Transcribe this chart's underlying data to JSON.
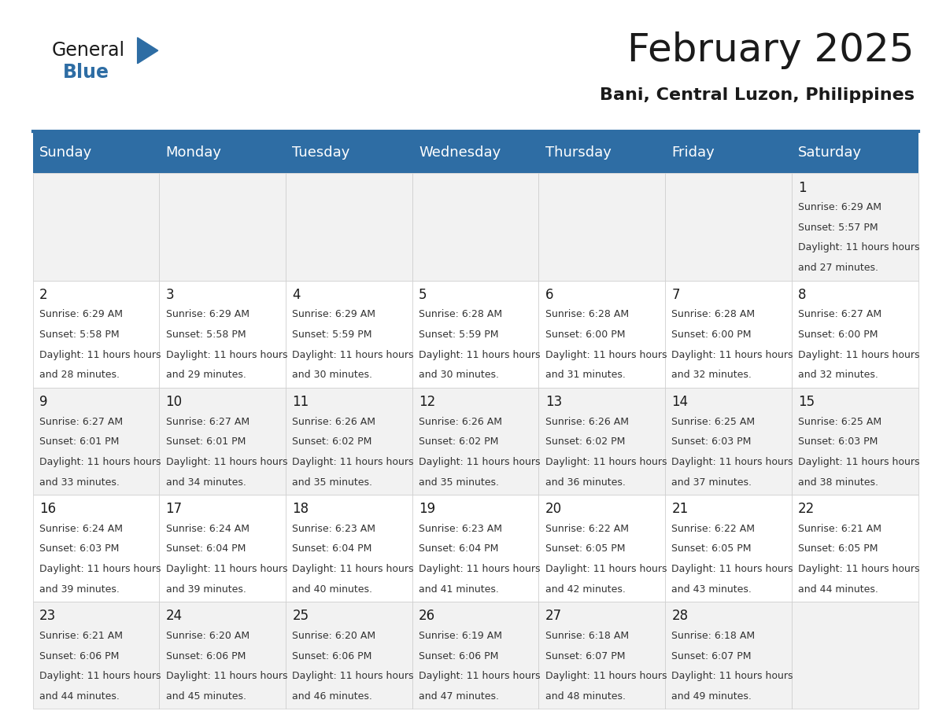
{
  "title": "February 2025",
  "subtitle": "Bani, Central Luzon, Philippines",
  "header_bg": "#2E6DA4",
  "header_text": "#FFFFFF",
  "cell_bg_even": "#F2F2F2",
  "cell_bg_odd": "#FFFFFF",
  "cell_border": "#CCCCCC",
  "day_headers": [
    "Sunday",
    "Monday",
    "Tuesday",
    "Wednesday",
    "Thursday",
    "Friday",
    "Saturday"
  ],
  "title_fontsize": 36,
  "subtitle_fontsize": 16,
  "header_fontsize": 13,
  "day_num_fontsize": 12,
  "info_fontsize": 9,
  "logo_general_color": "#1a1a1a",
  "logo_blue_color": "#2E6DA4",
  "calendar_data": {
    "1": {
      "sunrise": "6:29 AM",
      "sunset": "5:57 PM",
      "daylight": "11 hours and 27 minutes."
    },
    "2": {
      "sunrise": "6:29 AM",
      "sunset": "5:58 PM",
      "daylight": "11 hours and 28 minutes."
    },
    "3": {
      "sunrise": "6:29 AM",
      "sunset": "5:58 PM",
      "daylight": "11 hours and 29 minutes."
    },
    "4": {
      "sunrise": "6:29 AM",
      "sunset": "5:59 PM",
      "daylight": "11 hours and 30 minutes."
    },
    "5": {
      "sunrise": "6:28 AM",
      "sunset": "5:59 PM",
      "daylight": "11 hours and 30 minutes."
    },
    "6": {
      "sunrise": "6:28 AM",
      "sunset": "6:00 PM",
      "daylight": "11 hours and 31 minutes."
    },
    "7": {
      "sunrise": "6:28 AM",
      "sunset": "6:00 PM",
      "daylight": "11 hours and 32 minutes."
    },
    "8": {
      "sunrise": "6:27 AM",
      "sunset": "6:00 PM",
      "daylight": "11 hours and 32 minutes."
    },
    "9": {
      "sunrise": "6:27 AM",
      "sunset": "6:01 PM",
      "daylight": "11 hours and 33 minutes."
    },
    "10": {
      "sunrise": "6:27 AM",
      "sunset": "6:01 PM",
      "daylight": "11 hours and 34 minutes."
    },
    "11": {
      "sunrise": "6:26 AM",
      "sunset": "6:02 PM",
      "daylight": "11 hours and 35 minutes."
    },
    "12": {
      "sunrise": "6:26 AM",
      "sunset": "6:02 PM",
      "daylight": "11 hours and 35 minutes."
    },
    "13": {
      "sunrise": "6:26 AM",
      "sunset": "6:02 PM",
      "daylight": "11 hours and 36 minutes."
    },
    "14": {
      "sunrise": "6:25 AM",
      "sunset": "6:03 PM",
      "daylight": "11 hours and 37 minutes."
    },
    "15": {
      "sunrise": "6:25 AM",
      "sunset": "6:03 PM",
      "daylight": "11 hours and 38 minutes."
    },
    "16": {
      "sunrise": "6:24 AM",
      "sunset": "6:03 PM",
      "daylight": "11 hours and 39 minutes."
    },
    "17": {
      "sunrise": "6:24 AM",
      "sunset": "6:04 PM",
      "daylight": "11 hours and 39 minutes."
    },
    "18": {
      "sunrise": "6:23 AM",
      "sunset": "6:04 PM",
      "daylight": "11 hours and 40 minutes."
    },
    "19": {
      "sunrise": "6:23 AM",
      "sunset": "6:04 PM",
      "daylight": "11 hours and 41 minutes."
    },
    "20": {
      "sunrise": "6:22 AM",
      "sunset": "6:05 PM",
      "daylight": "11 hours and 42 minutes."
    },
    "21": {
      "sunrise": "6:22 AM",
      "sunset": "6:05 PM",
      "daylight": "11 hours and 43 minutes."
    },
    "22": {
      "sunrise": "6:21 AM",
      "sunset": "6:05 PM",
      "daylight": "11 hours and 44 minutes."
    },
    "23": {
      "sunrise": "6:21 AM",
      "sunset": "6:06 PM",
      "daylight": "11 hours and 44 minutes."
    },
    "24": {
      "sunrise": "6:20 AM",
      "sunset": "6:06 PM",
      "daylight": "11 hours and 45 minutes."
    },
    "25": {
      "sunrise": "6:20 AM",
      "sunset": "6:06 PM",
      "daylight": "11 hours and 46 minutes."
    },
    "26": {
      "sunrise": "6:19 AM",
      "sunset": "6:06 PM",
      "daylight": "11 hours and 47 minutes."
    },
    "27": {
      "sunrise": "6:18 AM",
      "sunset": "6:07 PM",
      "daylight": "11 hours and 48 minutes."
    },
    "28": {
      "sunrise": "6:18 AM",
      "sunset": "6:07 PM",
      "daylight": "11 hours and 49 minutes."
    }
  },
  "week_rows": [
    [
      null,
      null,
      null,
      null,
      null,
      null,
      1
    ],
    [
      2,
      3,
      4,
      5,
      6,
      7,
      8
    ],
    [
      9,
      10,
      11,
      12,
      13,
      14,
      15
    ],
    [
      16,
      17,
      18,
      19,
      20,
      21,
      22
    ],
    [
      23,
      24,
      25,
      26,
      27,
      28,
      null
    ]
  ]
}
